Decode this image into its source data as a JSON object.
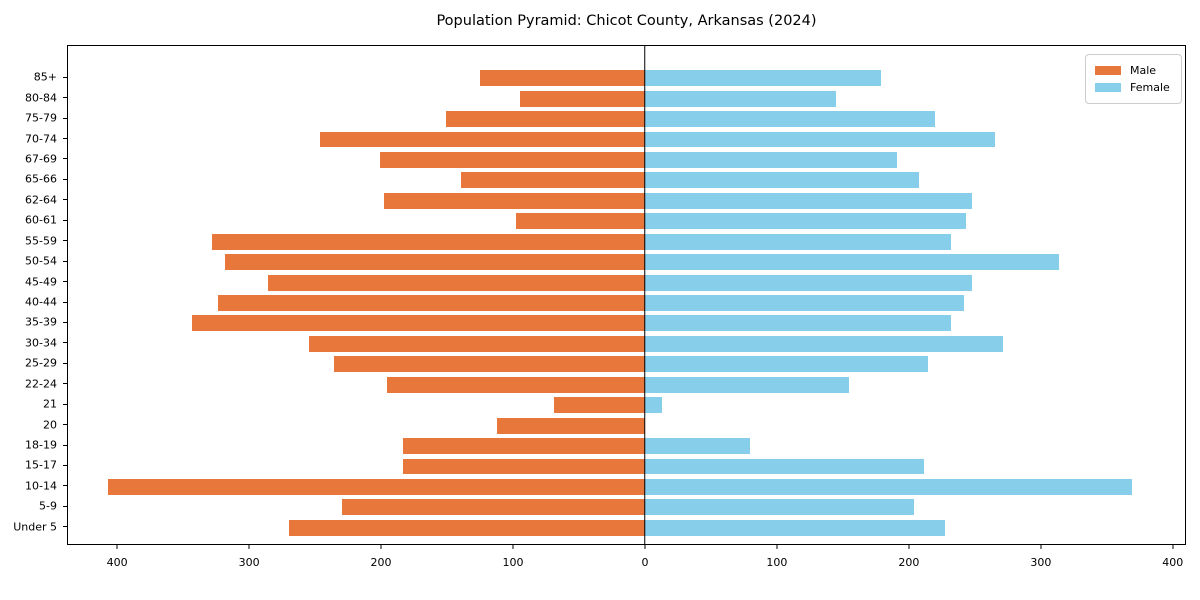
{
  "chart_data": {
    "type": "bar",
    "variant": "population-pyramid",
    "title": "Population Pyramid: Chicot County, Arkansas (2024)",
    "categories": [
      "85+",
      "80-84",
      "75-79",
      "70-74",
      "67-69",
      "65-66",
      "62-64",
      "60-61",
      "55-59",
      "50-54",
      "45-49",
      "40-44",
      "35-39",
      "30-34",
      "25-29",
      "22-24",
      "21",
      "20",
      "18-19",
      "15-17",
      "10-14",
      "5-9",
      "Under 5"
    ],
    "series": [
      {
        "name": "Male",
        "side": "left",
        "color": "#e8773c",
        "values": [
          125,
          95,
          151,
          247,
          201,
          140,
          198,
          98,
          329,
          319,
          286,
          324,
          344,
          255,
          236,
          196,
          69,
          112,
          184,
          184,
          408,
          230,
          270
        ]
      },
      {
        "name": "Female",
        "side": "right",
        "color": "#87ceeb",
        "values": [
          179,
          145,
          220,
          266,
          191,
          208,
          248,
          244,
          232,
          314,
          248,
          242,
          232,
          272,
          215,
          155,
          13,
          0,
          80,
          212,
          370,
          204,
          228
        ]
      }
    ],
    "xlabel": "",
    "ylabel": "",
    "axis": {
      "xmin": -438,
      "xmax": 410,
      "ticks": [
        -400,
        -300,
        -200,
        -100,
        0,
        100,
        200,
        300,
        400
      ],
      "tick_labels_absolute": true
    },
    "legend": {
      "position": "upper-right",
      "entries": [
        "Male",
        "Female"
      ]
    },
    "zero_line_color": "#000000",
    "grid": false,
    "background": "#ffffff"
  }
}
